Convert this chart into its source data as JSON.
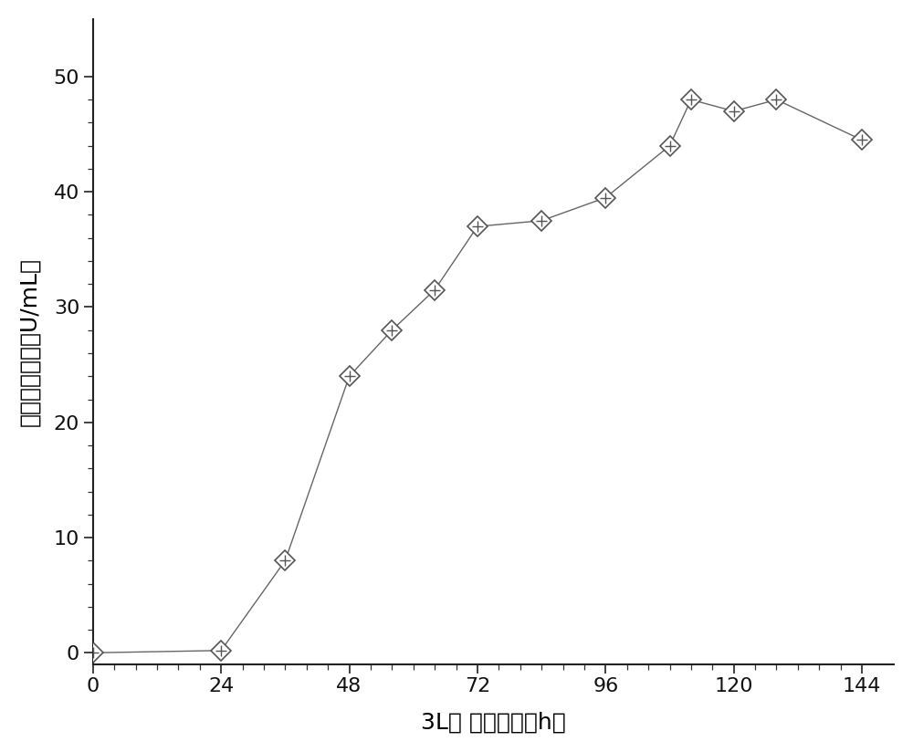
{
  "x": [
    0,
    24,
    36,
    48,
    56,
    64,
    72,
    84,
    96,
    108,
    112,
    120,
    128,
    144
  ],
  "y": [
    0.0,
    0.2,
    8.0,
    24.0,
    28.0,
    31.5,
    37.0,
    37.5,
    39.5,
    44.0,
    48.0,
    47.0,
    48.0,
    44.5
  ],
  "xlabel": "3L罐 发酵时间（h）",
  "ylabel": "胰蛋白酶酶活（U/mL）",
  "xticks": [
    0,
    24,
    48,
    72,
    96,
    120,
    144
  ],
  "yticks": [
    0,
    10,
    20,
    30,
    40,
    50
  ],
  "xlim": [
    0,
    150
  ],
  "ylim": [
    -1,
    55
  ],
  "line_color": "#666666",
  "marker_edge_color": "#555555",
  "marker_face": "#ffffff",
  "bg_color": "#ffffff",
  "label_fontsize": 18,
  "tick_fontsize": 16,
  "marker_size": 11
}
